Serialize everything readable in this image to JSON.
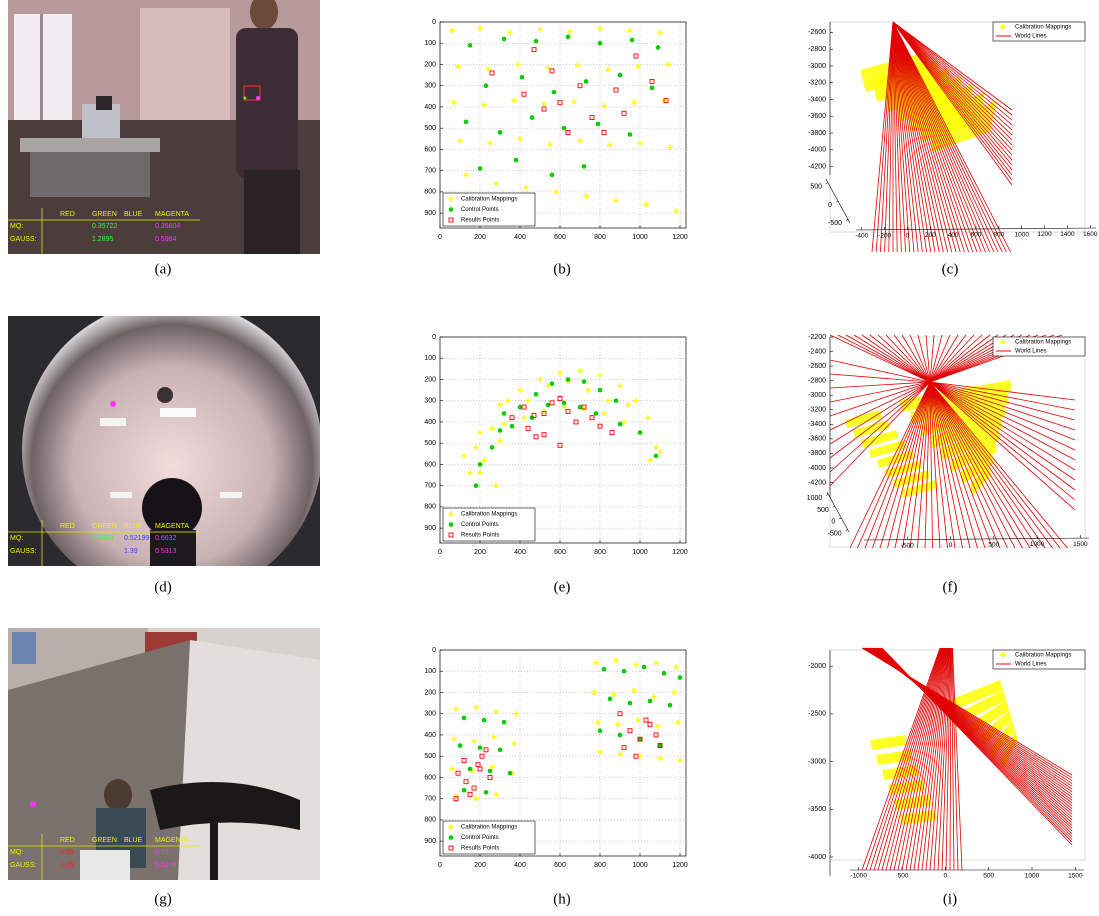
{
  "captions": [
    "(a)",
    "(b)",
    "(c)",
    "(d)",
    "(e)",
    "(f)",
    "(g)",
    "(h)",
    "(i)"
  ],
  "photos": [
    {
      "overlay": {
        "columns": [
          "RED",
          "GREEN",
          "BLUE",
          "MAGENTA"
        ],
        "column_colors": [
          "#ff2020",
          "#30ff30",
          "#3a3aff",
          "#ff30ff"
        ],
        "rows": [
          {
            "label": "MQ:",
            "cells": [
              null,
              "0.35722",
              null,
              "0.35804"
            ]
          },
          {
            "label": "GAUSS:",
            "cells": [
              null,
              "1.2895",
              null,
              "0.5984"
            ]
          }
        ]
      }
    },
    {
      "overlay": {
        "columns": [
          "RED",
          "GREEN",
          "BLUE",
          "MAGENTA"
        ],
        "column_colors": [
          "#ff2020",
          "#30ff30",
          "#3a3aff",
          "#ff30ff"
        ],
        "rows": [
          {
            "label": "MQ:",
            "cells": [
              null,
              "1.0003",
              "0.52199",
              "0.6632"
            ]
          },
          {
            "label": "GAUSS:",
            "cells": [
              null,
              null,
              "1.39",
              "0.5313"
            ]
          }
        ]
      }
    },
    {
      "overlay": {
        "columns": [
          "RED",
          "GREEN",
          "BLUE",
          "MAGENTA"
        ],
        "column_colors": [
          "#ff2020",
          "#30ff30",
          "#3a3aff",
          "#ff30ff"
        ],
        "rows": [
          {
            "label": "MQ:",
            "cells": [
              "0.69",
              null,
              null,
              "0.86"
            ]
          },
          {
            "label": "GAUSS:",
            "cells": [
              "1.09",
              null,
              null,
              "0.5249"
            ]
          }
        ]
      }
    }
  ],
  "chart_data": [
    {
      "type": "scatter",
      "xlim": [
        0,
        1230
      ],
      "ylim": [
        0,
        970
      ],
      "y_reversed": true,
      "xticks": [
        0,
        200,
        400,
        600,
        800,
        1000,
        1200
      ],
      "yticks": [
        0,
        100,
        200,
        300,
        400,
        500,
        600,
        700,
        800,
        900
      ],
      "grid": true,
      "legend": "lower left",
      "series": [
        {
          "name": "Calibration Mappings",
          "color": "#ffff00",
          "marker": "plus",
          "x": [
            60,
            200,
            350,
            500,
            650,
            800,
            950,
            1100,
            90,
            240,
            390,
            540,
            690,
            840,
            990,
            1140,
            70,
            220,
            370,
            520,
            670,
            820,
            970,
            1120,
            100,
            250,
            400,
            550,
            700,
            850,
            1000,
            1150,
            130,
            280,
            430,
            580,
            730,
            880,
            1030,
            1180
          ],
          "values": [
            40,
            30,
            50,
            35,
            45,
            30,
            40,
            50,
            210,
            220,
            200,
            215,
            205,
            225,
            210,
            200,
            380,
            390,
            370,
            385,
            375,
            395,
            380,
            370,
            560,
            570,
            550,
            575,
            560,
            580,
            570,
            590,
            720,
            760,
            780,
            800,
            820,
            840,
            860,
            890
          ]
        },
        {
          "name": "Control Points",
          "color": "#00cc00",
          "marker": "dot",
          "x": [
            150,
            320,
            480,
            640,
            800,
            960,
            1090,
            230,
            410,
            570,
            730,
            900,
            1060,
            130,
            300,
            460,
            620,
            790,
            950,
            200,
            380,
            560,
            720
          ],
          "values": [
            110,
            80,
            90,
            70,
            100,
            85,
            120,
            300,
            260,
            330,
            280,
            250,
            310,
            470,
            520,
            450,
            500,
            480,
            530,
            690,
            650,
            720,
            680
          ]
        },
        {
          "name": "Results Points",
          "color": "#ff0000",
          "marker": "square",
          "x": [
            260,
            420,
            520,
            600,
            700,
            760,
            880,
            980,
            1060,
            1130,
            560,
            640,
            820,
            470,
            920
          ],
          "values": [
            240,
            340,
            410,
            380,
            300,
            450,
            320,
            160,
            280,
            370,
            230,
            520,
            520,
            130,
            430
          ]
        }
      ]
    },
    {
      "type": "scatter3d",
      "xlim": [
        -450,
        1650
      ],
      "ylim": [
        -600,
        600
      ],
      "zlim": [
        -4300,
        -2500
      ],
      "xticks": [
        -400,
        -200,
        0,
        200,
        400,
        600,
        800,
        1000,
        1200,
        1400,
        1600
      ],
      "yticks": [
        500,
        0,
        -500
      ],
      "zticks": [
        -2600,
        -2800,
        -3000,
        -3200,
        -3400,
        -3600,
        -3800,
        -4000,
        -4200
      ],
      "legend": "upper right",
      "series": [
        {
          "name": "Calibration Mappings",
          "color": "#ffff00"
        },
        {
          "name": "World Lines",
          "color": "#ff0000"
        }
      ]
    },
    {
      "type": "scatter",
      "xlim": [
        0,
        1230
      ],
      "ylim": [
        0,
        970
      ],
      "y_reversed": true,
      "xticks": [
        0,
        200,
        400,
        600,
        800,
        1000,
        1200
      ],
      "yticks": [
        0,
        100,
        200,
        300,
        400,
        500,
        600,
        700,
        800,
        900
      ],
      "grid": true,
      "legend": "lower left",
      "series": [
        {
          "name": "Calibration Mappings",
          "color": "#ffff00",
          "marker": "plus",
          "x": [
            120,
            200,
            280,
            200,
            300,
            400,
            500,
            600,
            700,
            800,
            900,
            980,
            320,
            420,
            520,
            620,
            720,
            820,
            920,
            1000,
            1080,
            180,
            260,
            340,
            440,
            540,
            640,
            740,
            840,
            940,
            1040,
            1100,
            150,
            220,
            300,
            1050
          ],
          "values": [
            560,
            640,
            700,
            450,
            320,
            250,
            200,
            170,
            160,
            180,
            230,
            300,
            410,
            380,
            350,
            330,
            340,
            360,
            400,
            450,
            520,
            520,
            430,
            300,
            300,
            230,
            210,
            250,
            300,
            320,
            380,
            540,
            640,
            580,
            490,
            580
          ]
        },
        {
          "name": "Control Points",
          "color": "#00cc00",
          "marker": "dot",
          "x": [
            200,
            300,
            400,
            480,
            560,
            640,
            720,
            800,
            880,
            360,
            460,
            540,
            620,
            700,
            780,
            260,
            320,
            900,
            1000,
            1080,
            180
          ],
          "values": [
            600,
            440,
            330,
            270,
            220,
            200,
            210,
            250,
            300,
            420,
            380,
            320,
            310,
            330,
            360,
            520,
            360,
            410,
            450,
            560,
            700
          ]
        },
        {
          "name": "Results Points",
          "color": "#ff0000",
          "marker": "square",
          "x": [
            360,
            420,
            440,
            480,
            520,
            560,
            600,
            640,
            680,
            720,
            760,
            800,
            860,
            600,
            520,
            470
          ],
          "values": [
            380,
            330,
            430,
            470,
            360,
            310,
            290,
            350,
            400,
            330,
            380,
            420,
            450,
            510,
            460,
            370
          ]
        }
      ]
    },
    {
      "type": "scatter3d",
      "xlim": [
        -1000,
        1600
      ],
      "ylim": [
        -600,
        1100
      ],
      "zlim": [
        -4400,
        -2200
      ],
      "xticks": [
        -500,
        0,
        500,
        1000,
        1500
      ],
      "yticks": [
        1000,
        500,
        0,
        -500
      ],
      "zticks": [
        -2200,
        -2400,
        -2600,
        -2800,
        -3000,
        -3200,
        -3400,
        -3600,
        -3800,
        -4000,
        -4200
      ],
      "legend": "upper right",
      "series": [
        {
          "name": "Calibration Mappings",
          "color": "#ffff00"
        },
        {
          "name": "World Lines",
          "color": "#ff0000"
        }
      ]
    },
    {
      "type": "scatter",
      "xlim": [
        0,
        1230
      ],
      "ylim": [
        0,
        970
      ],
      "y_reversed": true,
      "xticks": [
        0,
        200,
        400,
        600,
        800,
        1000,
        1200
      ],
      "yticks": [
        0,
        100,
        200,
        300,
        400,
        500,
        600,
        700,
        800,
        900
      ],
      "grid": true,
      "legend": "lower left",
      "series": [
        {
          "name": "Calibration Mappings",
          "color": "#ffff00",
          "marker": "plus",
          "x": [
            80,
            180,
            280,
            380,
            70,
            170,
            270,
            370,
            60,
            160,
            260,
            360,
            80,
            180,
            280,
            780,
            880,
            980,
            1080,
            1180,
            770,
            870,
            970,
            1070,
            1170,
            790,
            890,
            990,
            1090,
            1190,
            800,
            900,
            1000,
            1100,
            1200
          ],
          "values": [
            280,
            270,
            290,
            300,
            420,
            430,
            410,
            440,
            560,
            570,
            550,
            580,
            690,
            700,
            680,
            60,
            50,
            70,
            60,
            80,
            200,
            210,
            190,
            220,
            200,
            340,
            350,
            330,
            360,
            340,
            480,
            490,
            500,
            510,
            520
          ]
        },
        {
          "name": "Control Points",
          "color": "#00cc00",
          "marker": "dot",
          "x": [
            120,
            220,
            320,
            100,
            200,
            300,
            150,
            250,
            350,
            120,
            230,
            820,
            920,
            1020,
            1120,
            1200,
            850,
            950,
            1050,
            1150,
            800,
            900,
            1000,
            1100
          ],
          "values": [
            320,
            330,
            340,
            450,
            460,
            470,
            560,
            570,
            580,
            660,
            670,
            90,
            100,
            80,
            110,
            130,
            230,
            250,
            240,
            260,
            380,
            400,
            420,
            450
          ]
        },
        {
          "name": "Results Points",
          "color": "#ff0000",
          "marker": "square",
          "x": [
            90,
            130,
            170,
            210,
            250,
            150,
            190,
            230,
            80,
            120,
            200,
            900,
            950,
            1000,
            1050,
            1100,
            980,
            1030,
            1080,
            920
          ],
          "values": [
            580,
            620,
            650,
            500,
            600,
            680,
            540,
            470,
            700,
            520,
            560,
            300,
            380,
            420,
            350,
            450,
            500,
            330,
            400,
            460
          ]
        }
      ]
    },
    {
      "type": "scatter3d",
      "xlim": [
        -1100,
        1600
      ],
      "zlim": [
        -4200,
        -1830
      ],
      "xticks": [
        -1000,
        -500,
        0,
        500,
        1000,
        1500
      ],
      "zticks": [
        -2000,
        -2500,
        -3000,
        -3500,
        -4000
      ],
      "legend": "upper right",
      "series": [
        {
          "name": "Calibration Mappings",
          "color": "#ffff00"
        },
        {
          "name": "World Lines",
          "color": "#ff0000"
        }
      ]
    }
  ]
}
